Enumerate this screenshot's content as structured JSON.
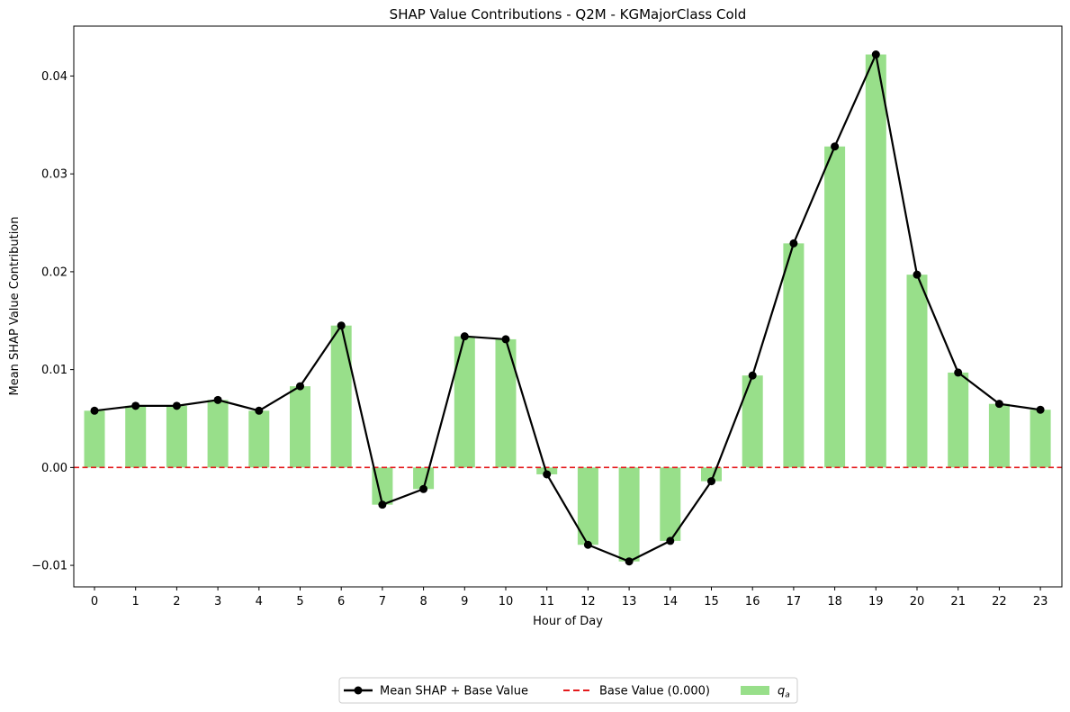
{
  "chart_data": {
    "type": "bar",
    "title": "SHAP Value Contributions - Q2M - KGMajorClass Cold",
    "xlabel": "Hour of Day",
    "ylabel": "Mean SHAP Value Contribution",
    "categories": [
      "0",
      "1",
      "2",
      "3",
      "4",
      "5",
      "6",
      "7",
      "8",
      "9",
      "10",
      "11",
      "12",
      "13",
      "14",
      "15",
      "16",
      "17",
      "18",
      "19",
      "20",
      "21",
      "22",
      "23"
    ],
    "ylim": [
      -0.0122,
      0.0451
    ],
    "yticks": [
      -0.01,
      0.0,
      0.01,
      0.02,
      0.03,
      0.04
    ],
    "ytick_labels": [
      "−0.01",
      "0.00",
      "0.01",
      "0.02",
      "0.03",
      "0.04"
    ],
    "grid": false,
    "legend_position": "bottom-center, below plot",
    "series": [
      {
        "name": "q_a",
        "type": "bar",
        "color": "#98df8a",
        "values": [
          0.0058,
          0.0063,
          0.0063,
          0.0069,
          0.0058,
          0.0083,
          0.0145,
          -0.0038,
          -0.0022,
          0.0134,
          0.0131,
          -0.0007,
          -0.0079,
          -0.0096,
          -0.0075,
          -0.0014,
          0.0094,
          0.0229,
          0.0328,
          0.0422,
          0.0197,
          0.0097,
          0.0065,
          0.0059
        ]
      },
      {
        "name": "Mean SHAP + Base Value",
        "type": "line",
        "color": "#000000",
        "marker": "circle",
        "values": [
          0.0058,
          0.0063,
          0.0063,
          0.0069,
          0.0058,
          0.0083,
          0.0145,
          -0.0038,
          -0.0022,
          0.0134,
          0.0131,
          -0.0007,
          -0.0079,
          -0.0096,
          -0.0075,
          -0.0014,
          0.0094,
          0.0229,
          0.0328,
          0.0422,
          0.0197,
          0.0097,
          0.0065,
          0.0059
        ]
      },
      {
        "name": "Base Value (0.000)",
        "type": "hline",
        "color": "#e41a1c",
        "linestyle": "dashed",
        "value": 0.0
      }
    ],
    "legend": {
      "entries": [
        {
          "label": "Mean SHAP + Base Value",
          "kind": "line-marker",
          "color": "#000000"
        },
        {
          "label": "Base Value (0.000)",
          "kind": "dashed-line",
          "color": "#e41a1c"
        },
        {
          "label_base": "q",
          "label_sub": "a",
          "kind": "patch",
          "color": "#98df8a"
        }
      ]
    }
  }
}
